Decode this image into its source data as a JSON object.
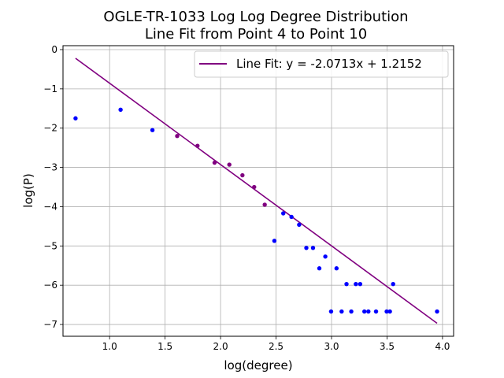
{
  "chart_data": {
    "type": "scatter",
    "title": [
      "OGLE-TR-1033 Log Log Degree Distribution",
      "Line Fit from Point 4 to Point 10"
    ],
    "xlabel": "log(degree)",
    "ylabel": "log(P)",
    "xlim": [
      0.58,
      4.1
    ],
    "ylim": [
      -7.3,
      0.1
    ],
    "xticks": [
      1.0,
      1.5,
      2.0,
      2.5,
      3.0,
      3.5,
      4.0
    ],
    "xtick_labels": [
      "1.0",
      "1.5",
      "2.0",
      "2.5",
      "3.0",
      "3.5",
      "4.0"
    ],
    "yticks": [
      0,
      -1,
      -2,
      -3,
      -4,
      -5,
      -6,
      -7
    ],
    "ytick_labels": [
      "0",
      "−1",
      "−2",
      "−3",
      "−4",
      "−5",
      "−6",
      "−7"
    ],
    "grid": true,
    "legend_placement": "top-right",
    "colors": {
      "points": "#0000ff",
      "fit_points": "#800080",
      "fit_line": "#800080"
    },
    "series": [
      {
        "color": "#0000ff",
        "points": [
          [
            0.693,
            -1.75
          ],
          [
            1.099,
            -1.53
          ],
          [
            1.386,
            -2.05
          ],
          [
            2.485,
            -4.87
          ],
          [
            2.565,
            -4.17
          ],
          [
            2.639,
            -4.26
          ],
          [
            2.708,
            -4.46
          ],
          [
            2.773,
            -5.05
          ],
          [
            2.833,
            -5.05
          ],
          [
            2.89,
            -5.57
          ],
          [
            2.944,
            -5.27
          ],
          [
            2.996,
            -6.67
          ],
          [
            3.045,
            -5.57
          ],
          [
            3.091,
            -6.67
          ],
          [
            3.135,
            -5.97
          ],
          [
            3.178,
            -6.67
          ],
          [
            3.219,
            -5.97
          ],
          [
            3.258,
            -5.97
          ],
          [
            3.296,
            -6.67
          ],
          [
            3.332,
            -6.67
          ],
          [
            3.401,
            -6.67
          ],
          [
            3.497,
            -6.67
          ],
          [
            3.526,
            -6.67
          ],
          [
            3.555,
            -5.97
          ],
          [
            3.951,
            -6.67
          ]
        ]
      },
      {
        "color": "#800080",
        "points": [
          [
            1.609,
            -2.2
          ],
          [
            1.792,
            -2.45
          ],
          [
            1.946,
            -2.88
          ],
          [
            2.079,
            -2.93
          ],
          [
            2.197,
            -3.2
          ],
          [
            2.303,
            -3.5
          ],
          [
            2.398,
            -3.95
          ]
        ]
      }
    ],
    "fit_line": {
      "name": "Line Fit: y = -2.0713x + 1.2152",
      "slope": -2.0713,
      "intercept": 1.2152,
      "x_range": [
        0.693,
        3.951
      ],
      "color": "#800080"
    }
  }
}
